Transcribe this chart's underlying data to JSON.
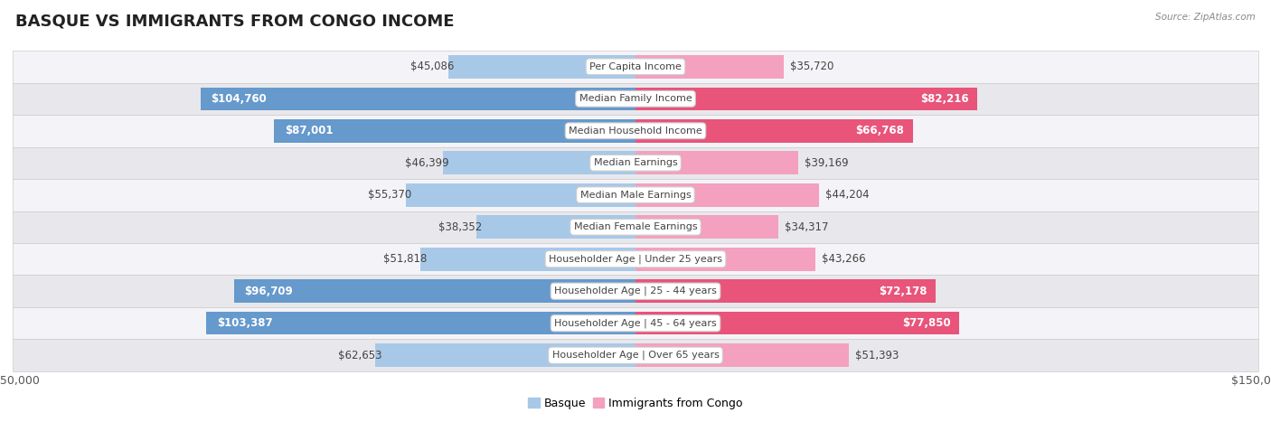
{
  "title": "BASQUE VS IMMIGRANTS FROM CONGO INCOME",
  "source": "Source: ZipAtlas.com",
  "categories": [
    "Per Capita Income",
    "Median Family Income",
    "Median Household Income",
    "Median Earnings",
    "Median Male Earnings",
    "Median Female Earnings",
    "Householder Age | Under 25 years",
    "Householder Age | 25 - 44 years",
    "Householder Age | 45 - 64 years",
    "Householder Age | Over 65 years"
  ],
  "basque_values": [
    45086,
    104760,
    87001,
    46399,
    55370,
    38352,
    51818,
    96709,
    103387,
    62653
  ],
  "congo_values": [
    35720,
    82216,
    66768,
    39169,
    44204,
    34317,
    43266,
    72178,
    77850,
    51393
  ],
  "basque_labels": [
    "$45,086",
    "$104,760",
    "$87,001",
    "$46,399",
    "$55,370",
    "$38,352",
    "$51,818",
    "$96,709",
    "$103,387",
    "$62,653"
  ],
  "congo_labels": [
    "$35,720",
    "$82,216",
    "$66,768",
    "$39,169",
    "$44,204",
    "$34,317",
    "$43,266",
    "$72,178",
    "$77,850",
    "$51,393"
  ],
  "basque_color_light": "#a8c8e8",
  "basque_color_dark": "#6699cc",
  "congo_color_light": "#f4a0bf",
  "congo_color_dark": "#e8547a",
  "xlim": 150000,
  "bar_height": 0.72,
  "row_bg_odd": "#e8e8ec",
  "row_bg_even": "#f4f4f8",
  "title_fontsize": 13,
  "label_fontsize": 8.5,
  "category_fontsize": 8,
  "legend_fontsize": 9,
  "axis_label_fontsize": 9,
  "background_color": "#ffffff",
  "basque_threshold": 80000,
  "congo_threshold": 60000
}
